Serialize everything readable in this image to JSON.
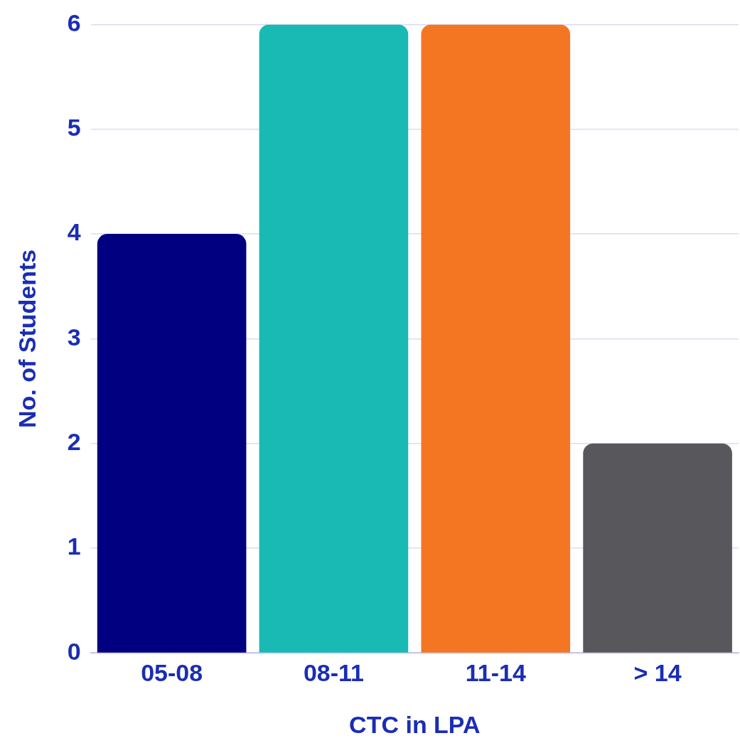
{
  "chart_data": {
    "type": "bar",
    "xlabel": "CTC in LPA",
    "ylabel": "No. of Students",
    "categories": [
      "05-08",
      "08-11",
      "11-14",
      "> 14"
    ],
    "values": [
      4,
      6,
      6,
      2
    ],
    "colors": [
      "#000080",
      "#19b9b4",
      "#f47622",
      "#58575c"
    ],
    "ylim": [
      0,
      6
    ],
    "yticks": [
      0,
      1,
      2,
      3,
      4,
      5,
      6
    ],
    "grid": "y"
  }
}
